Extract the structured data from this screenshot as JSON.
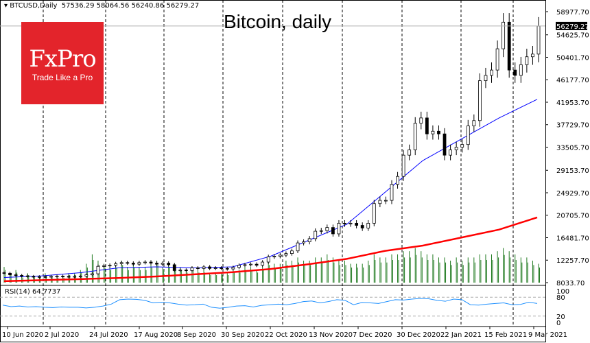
{
  "header": {
    "symbol": "BTCUSD,Daily",
    "ohlc": "57536.29 58064.56 56240.86 56279.27"
  },
  "logo": {
    "brand": "FxPro",
    "tagline": "Trade Like a Pro"
  },
  "chart_data": {
    "type": "candlestick",
    "title": "Bitcoin, daily",
    "current_price": "56279.27",
    "y_ticks": [
      "58977.70",
      "54625.70",
      "50401.70",
      "46177.70",
      "41953.70",
      "37729.70",
      "33505.70",
      "29153.70",
      "24929.70",
      "20705.70",
      "16481.70",
      "12257.70",
      "8033.70"
    ],
    "ylim": [
      8033.7,
      58977.7
    ],
    "x_ticks": [
      "10 Jun 2020",
      "2 Jul 2020",
      "24 Jul 2020",
      "17 Aug 2020",
      "8 Sep 2020",
      "30 Sep 2020",
      "22 Oct 2020",
      "13 Nov 2020",
      "7 Dec 2020",
      "30 Dec 2020",
      "22 Jan 2021",
      "15 Feb 2021",
      "9 Mar 2021"
    ],
    "closes": [
      9800,
      9500,
      9400,
      9300,
      9200,
      9100,
      9150,
      9100,
      9200,
      9250,
      9200,
      9150,
      9200,
      9250,
      9500,
      9700,
      11100,
      11200,
      11300,
      11600,
      11800,
      11700,
      11500,
      11800,
      11900,
      11700,
      11500,
      11700,
      11400,
      10300,
      10400,
      10300,
      10800,
      10700,
      11000,
      10700,
      10800,
      10700,
      10600,
      10900,
      11300,
      11400,
      11500,
      11300,
      11900,
      12900,
      13000,
      13200,
      13500,
      14000,
      15500,
      15700,
      16300,
      17700,
      17800,
      18400,
      17200,
      19200,
      19100,
      19200,
      18800,
      18300,
      19200,
      22900,
      23500,
      23500,
      26500,
      28000,
      32000,
      33000,
      38000,
      39000,
      36000,
      36500,
      36000,
      32000,
      33000,
      33500,
      34000,
      37500,
      38500,
      46000,
      47000,
      48000,
      52000,
      57000,
      48000,
      47000,
      49000,
      50500,
      51000,
      56279
    ],
    "ma_fast": [
      9000,
      9300,
      9900,
      10800,
      11000,
      10800,
      11000,
      13000,
      16000,
      19000,
      25000,
      31000,
      35000,
      39000,
      42500
    ],
    "ma_slow": [
      8300,
      8500,
      8700,
      8900,
      9200,
      9600,
      10000,
      10600,
      11500,
      12500,
      14000,
      15000,
      16500,
      18000,
      20300
    ],
    "volume": [
      5,
      3,
      4,
      2,
      3,
      2,
      2,
      3,
      2,
      2,
      2,
      3,
      3,
      4,
      6,
      9,
      7,
      6,
      5,
      6,
      7,
      5,
      6,
      5,
      5,
      6,
      7,
      5,
      6,
      6,
      5,
      4,
      5,
      4,
      4,
      3,
      3,
      3,
      3,
      4,
      4,
      5,
      5,
      4,
      5,
      7,
      6,
      6,
      7,
      7,
      8,
      7,
      7,
      8,
      8,
      9,
      8,
      7,
      7,
      6,
      6,
      6,
      7,
      9,
      8,
      8,
      9,
      9,
      10,
      10,
      11,
      10,
      9,
      9,
      8,
      8,
      7,
      8,
      7,
      8,
      8,
      9,
      9,
      9,
      10,
      11,
      10,
      9,
      8,
      8,
      7,
      6
    ],
    "rsi": {
      "label": "RSI(14) 64.7737",
      "levels": [
        "100",
        "80",
        "20",
        "0"
      ],
      "values": [
        55,
        50,
        52,
        49,
        50,
        48,
        47,
        49,
        48,
        48,
        46,
        48,
        52,
        58,
        72,
        74,
        73,
        70,
        62,
        64,
        62,
        58,
        55,
        56,
        58,
        48,
        45,
        48,
        52,
        53,
        49,
        54,
        56,
        58,
        56,
        60,
        66,
        68,
        62,
        66,
        72,
        70,
        56,
        63,
        62,
        60,
        66,
        72,
        71,
        74,
        76,
        75,
        70,
        67,
        74,
        72,
        56,
        55,
        58,
        60,
        62,
        56,
        57,
        64,
        60
      ]
    }
  }
}
